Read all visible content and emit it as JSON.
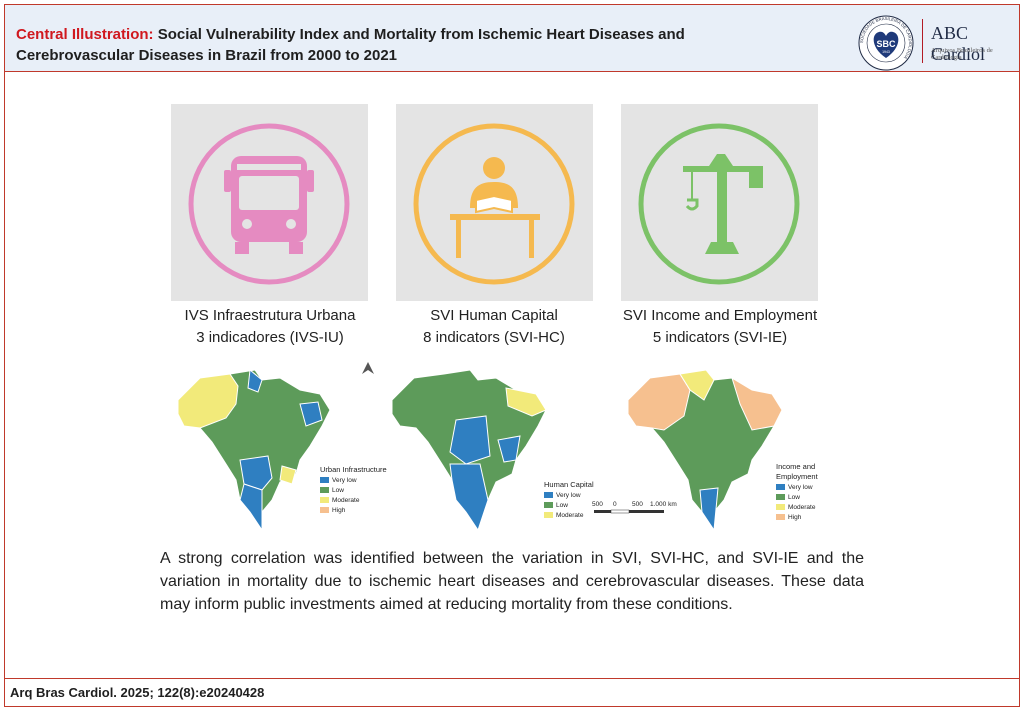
{
  "header": {
    "title_lead": "Central Illustration:",
    "title_rest": "Social Vulnerability Index and Mortality from Ischemic Heart Diseases and Cerebrovascular Diseases in Brazil from 2000 to 2021",
    "seal_text": "SBC",
    "seal_year": "1943",
    "seal_ring_text": "SOCIEDADE BRASILEIRA DE CARDIOLOGIA",
    "journal_name": "ABC Cardiol",
    "journal_sub": "Arquivos Brasileiros de Cardiologia"
  },
  "panels": [
    {
      "icon": "bus-icon",
      "color": "#e58bc1",
      "caption_line1": "IVS Infraestrutura Urbana",
      "caption_line2": "3 indicadores (IVS-IU)"
    },
    {
      "icon": "student-desk-icon",
      "color": "#f5b94f",
      "caption_line1": "SVI Human Capital",
      "caption_line2": "8 indicators (SVI-HC)"
    },
    {
      "icon": "crane-icon",
      "color": "#7cc267",
      "caption_line1": "SVI Income and Employment",
      "caption_line2": "5 indicators (SVI-IE)"
    }
  ],
  "colors": {
    "very_low": "#2f7fc1",
    "low": "#5d9b5a",
    "moderate": "#f2ea7a",
    "high": "#f6c08f",
    "accent": "#d0181f"
  },
  "maps": [
    {
      "legend_title": "Urban Infrastructure",
      "legend": [
        "Very low",
        "Low",
        "Moderate",
        "High"
      ]
    },
    {
      "legend_title": "Human Capital",
      "legend": [
        "Very low",
        "Low",
        "Moderate"
      ],
      "scale_labels": [
        "500",
        "0",
        "500",
        "1.000 km"
      ]
    },
    {
      "legend_title_line1": "Income and",
      "legend_title_line2": "Employment",
      "legend": [
        "Very low",
        "Low",
        "Moderate",
        "High"
      ]
    }
  ],
  "summary": "A strong correlation was identified between the variation in SVI, SVI-HC, and SVI-IE and the variation in mortality due to ischemic heart diseases and cerebrovascular diseases. These data may inform public investments aimed at reducing mortality from these conditions.",
  "footer": "Arq Bras Cardiol. 2025; 122(8):e20240428"
}
